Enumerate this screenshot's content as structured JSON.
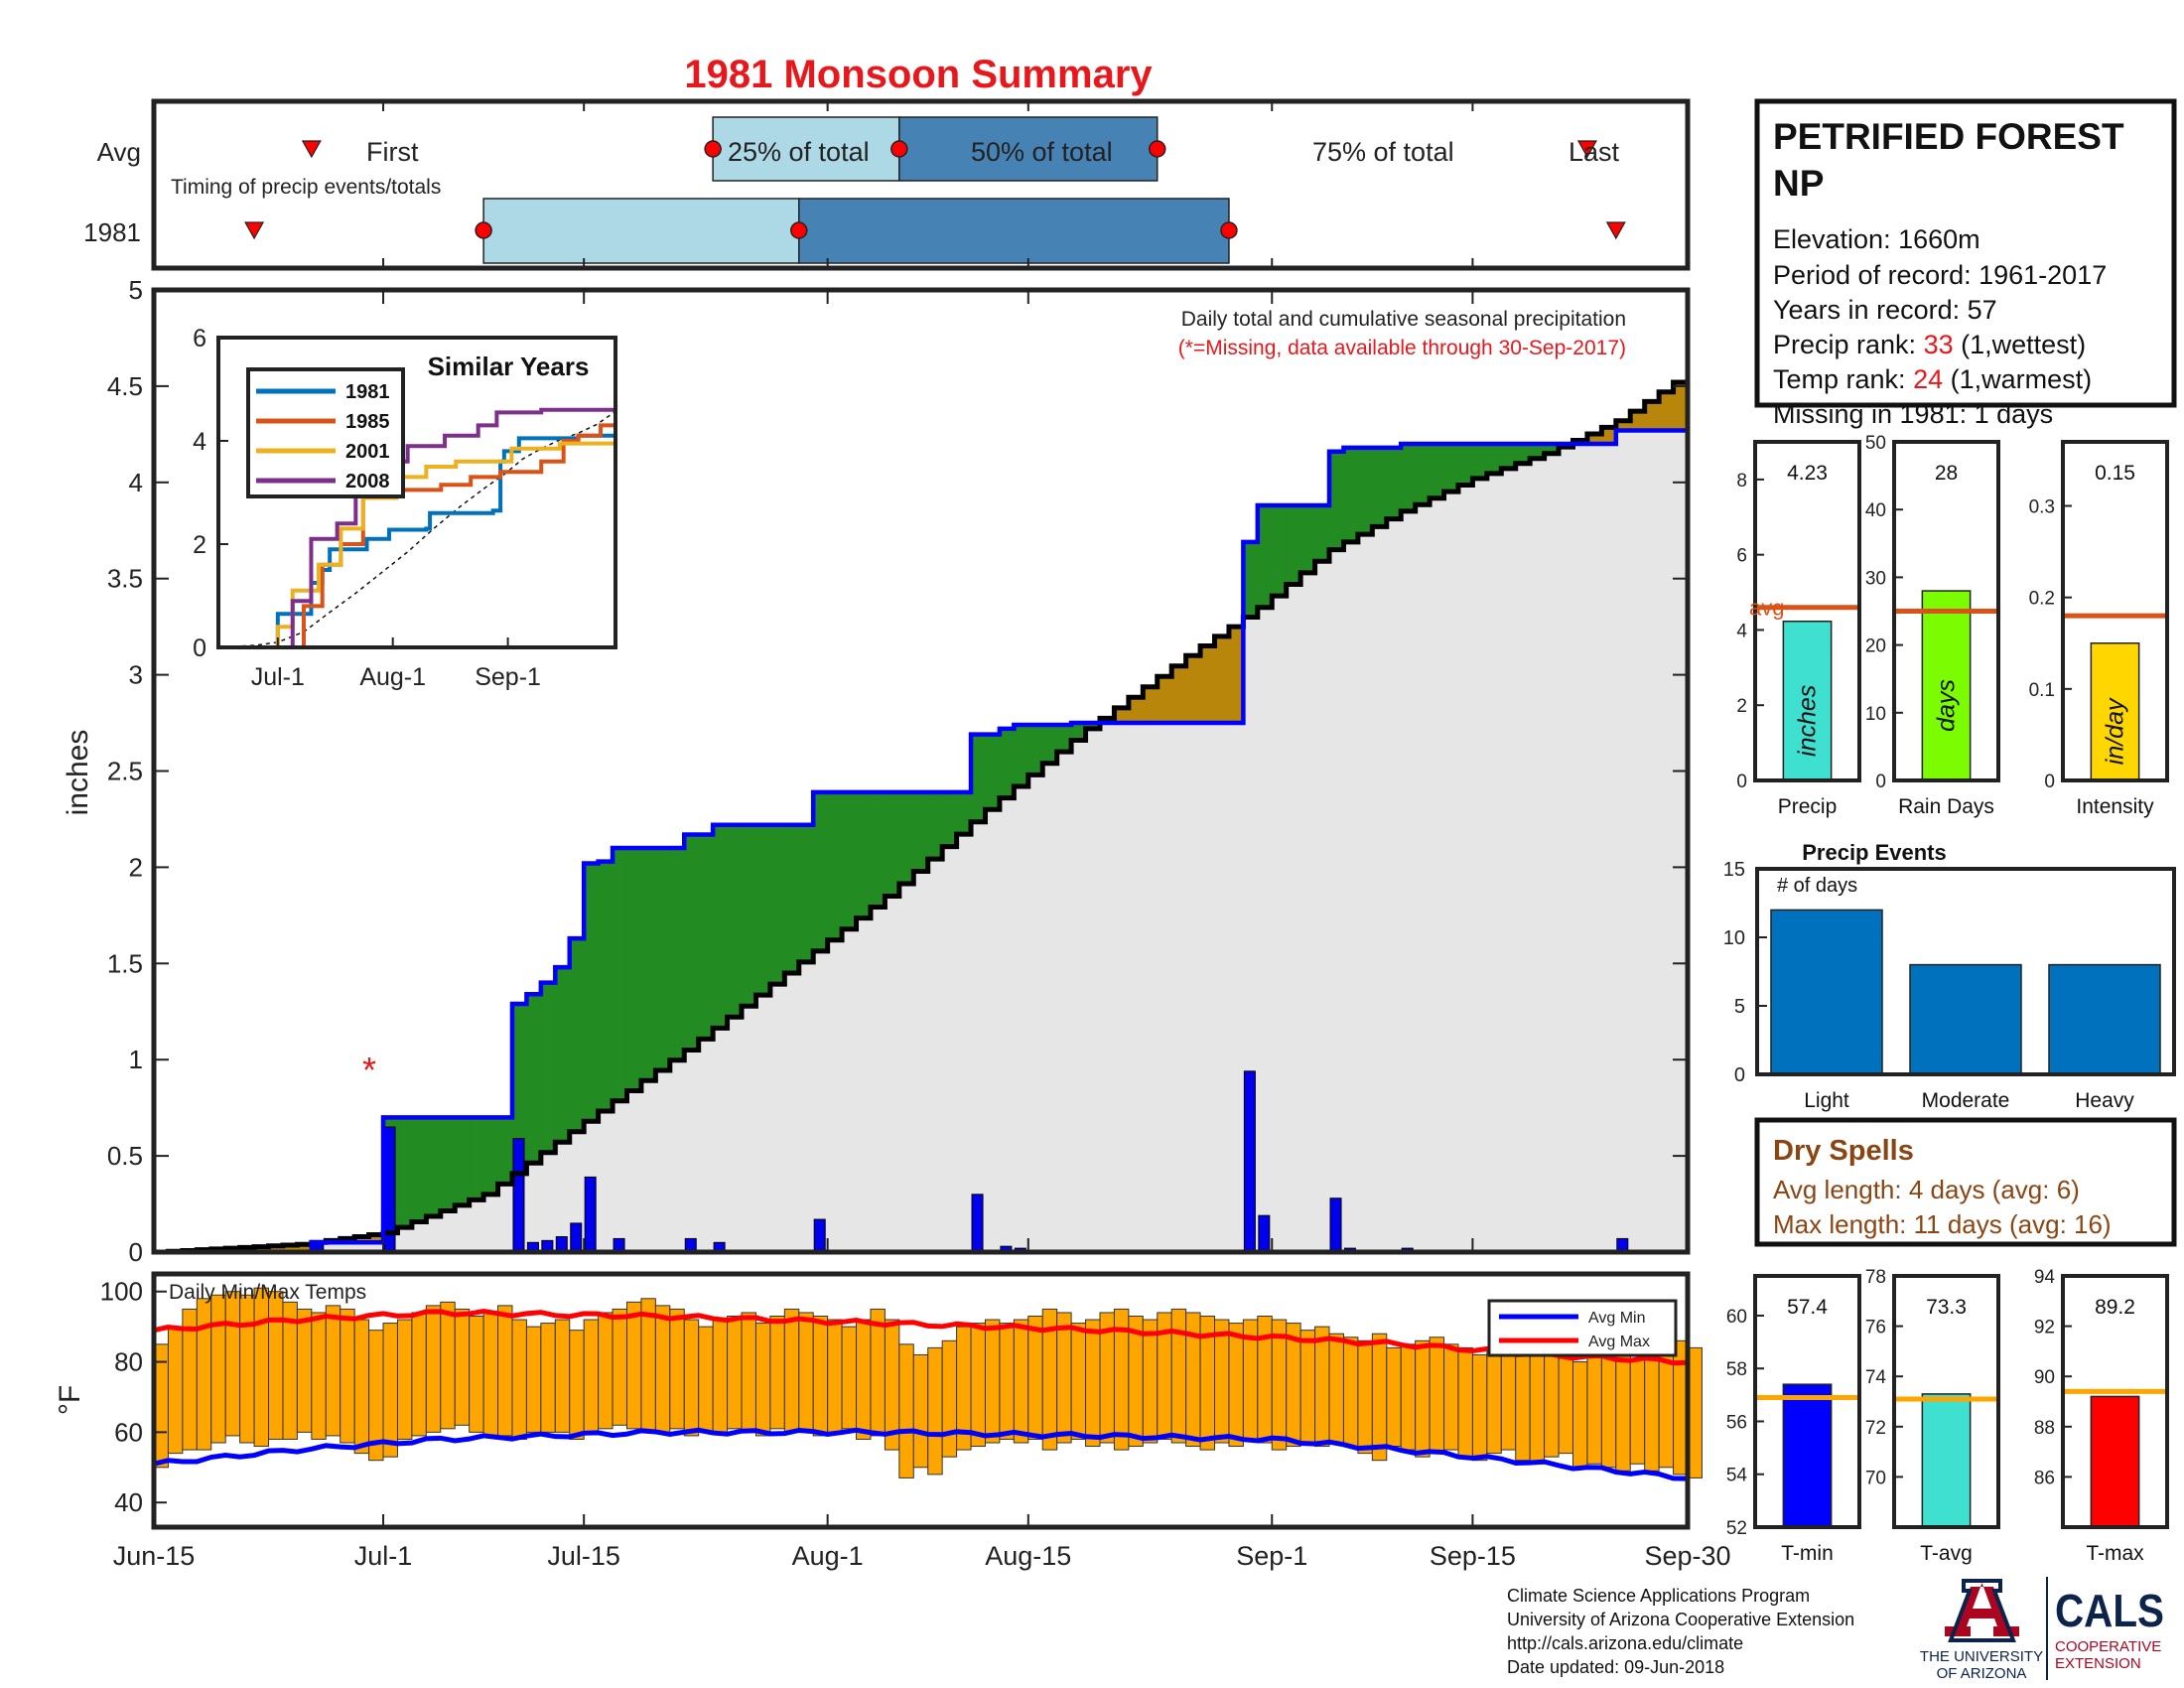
{
  "title": "1981 Monsoon Summary",
  "timing": {
    "rows": [
      "Avg",
      "1981"
    ],
    "note": "Timing of precip events/totals",
    "first_label": "First",
    "q25_label": "25% of total",
    "q50_label": "50% of total",
    "q75_label": "75% of total",
    "last_label": "Last",
    "avg": {
      "first": "2018-06-26",
      "q25": "2018-07-24",
      "q50": "2018-08-06",
      "q75": "2018-08-24",
      "last": "2018-09-23"
    },
    "y1981": {
      "first": "2018-06-22",
      "q25": "2018-07-08",
      "q50": "2018-07-30",
      "q75": "2018-08-29",
      "last": "2018-09-25"
    }
  },
  "station": {
    "name_line1": "PETRIFIED FOREST",
    "name_line2": "NP",
    "elevation": "Elevation: 1660m",
    "period": "Period of record: 1961-2017",
    "years": "Years in record: 57",
    "precip_rank_label": "Precip rank: ",
    "precip_rank_value": "33",
    "precip_rank_suffix": " (1,wettest)",
    "temp_rank_label": "Temp rank: ",
    "temp_rank_value": "24",
    "temp_rank_suffix": " (1,warmest)",
    "missing": "Missing in 1981: 1 days"
  },
  "colors": {
    "title": "#e8171b",
    "rank_value": "#e8171b",
    "missing_note": "#e8171b",
    "above_avg": "#228b22",
    "below_avg": "#b8860b",
    "season_fill": "#e6e6e6",
    "cumulative_avg_line": "#0000ff",
    "daily_bar": "#0000ee",
    "temp_bar": "#ffa500",
    "avg_min_line": "#0000ff",
    "avg_max_line": "#ff0000",
    "q_light": "#add8e6",
    "q_dark": "#4682b4",
    "marker_red": "#ff0000",
    "precip_bar": "#40e0d0",
    "raindays_bar": "#7cfc00",
    "intensity_bar": "#ffd700",
    "avg_line": "#d95319",
    "events_bar": "#0072bd",
    "dryspell_text": "#8b4513",
    "tmin_bar": "#0000ff",
    "tavg_bar": "#40e0d0",
    "tmax_bar": "#ff0000",
    "temp_avg_line": "#ffa500",
    "sim_1981": "#0072bd",
    "sim_1985": "#d95319",
    "sim_2001": "#edb120",
    "sim_2008": "#7e2f8e"
  },
  "chart_data": [
    {
      "type": "area",
      "name": "cumulative_precip",
      "annotation_line1": "Daily total and cumulative seasonal precipitation",
      "annotation_line2": "(*=Missing, data available through 30-Sep-2017)",
      "ylabel": "inches",
      "ylim": [
        0,
        5
      ],
      "yticks": [
        "0",
        "0.5",
        "1",
        "1.5",
        "2",
        "2.5",
        "3",
        "3.5",
        "4",
        "4.5",
        "5"
      ],
      "x_range": [
        "2018-06-15",
        "2018-09-30"
      ],
      "xtick_labels": [
        "Jun-15",
        "Jul-1",
        "Jul-15",
        "Aug-1",
        "Aug-15",
        "Sep-1",
        "Sep-15",
        "Sep-30"
      ],
      "xtick_dates": [
        "2018-06-15",
        "2018-07-01",
        "2018-07-15",
        "2018-08-01",
        "2018-08-15",
        "2018-09-01",
        "2018-09-15",
        "2018-09-30"
      ],
      "missing_marker": {
        "label": "*",
        "date": "2018-06-24",
        "value": 1.0
      },
      "avg_cumulative_knots": [
        [
          "2018-06-15",
          0
        ],
        [
          "2018-06-25",
          0.04
        ],
        [
          "2018-07-01",
          0.1
        ],
        [
          "2018-07-08",
          0.3
        ],
        [
          "2018-07-15",
          0.68
        ],
        [
          "2018-07-22",
          1.05
        ],
        [
          "2018-07-29",
          1.45
        ],
        [
          "2018-08-05",
          1.85
        ],
        [
          "2018-08-12",
          2.3
        ],
        [
          "2018-08-19",
          2.72
        ],
        [
          "2018-08-26",
          3.1
        ],
        [
          "2018-08-31",
          3.35
        ],
        [
          "2018-09-05",
          3.65
        ],
        [
          "2018-09-10",
          3.85
        ],
        [
          "2018-09-15",
          4.02
        ],
        [
          "2018-09-20",
          4.15
        ],
        [
          "2018-09-25",
          4.32
        ],
        [
          "2018-09-30",
          4.57
        ]
      ],
      "daily_1981": [
        [
          "2018-06-26",
          0.05
        ],
        [
          "2018-07-01",
          0.65
        ],
        [
          "2018-07-10",
          0.59
        ],
        [
          "2018-07-11",
          0.05
        ],
        [
          "2018-07-12",
          0.06
        ],
        [
          "2018-07-13",
          0.08
        ],
        [
          "2018-07-14",
          0.15
        ],
        [
          "2018-07-15",
          0.39
        ],
        [
          "2018-07-16",
          0.01
        ],
        [
          "2018-07-17",
          0.07
        ],
        [
          "2018-07-22",
          0.07
        ],
        [
          "2018-07-24",
          0.05
        ],
        [
          "2018-07-31",
          0.17
        ],
        [
          "2018-08-11",
          0.3
        ],
        [
          "2018-08-13",
          0.03
        ],
        [
          "2018-08-14",
          0.02
        ],
        [
          "2018-08-18",
          0.01
        ],
        [
          "2018-08-30",
          0.94
        ],
        [
          "2018-08-31",
          0.19
        ],
        [
          "2018-09-05",
          0.28
        ],
        [
          "2018-09-06",
          0.02
        ],
        [
          "2018-09-10",
          0.02
        ],
        [
          "2018-09-25",
          0.07
        ]
      ]
    },
    {
      "type": "line",
      "name": "similar_years",
      "title": "Similar Years",
      "ylim": [
        0,
        6
      ],
      "yticks": [
        "0",
        "2",
        "4",
        "6"
      ],
      "xtick_labels": [
        "Jul-1",
        "Aug-1",
        "Sep-1"
      ],
      "xtick_dates": [
        "2018-07-01",
        "2018-08-01",
        "2018-09-01"
      ],
      "x_range": [
        "2018-06-15",
        "2018-09-30"
      ],
      "series": [
        {
          "name": "1981",
          "color_key": "sim_1981",
          "points": [
            [
              "2018-06-15",
              0
            ],
            [
              "2018-06-30",
              0
            ],
            [
              "2018-07-01",
              0.65
            ],
            [
              "2018-07-09",
              0.65
            ],
            [
              "2018-07-10",
              1.25
            ],
            [
              "2018-07-13",
              1.5
            ],
            [
              "2018-07-15",
              1.9
            ],
            [
              "2018-07-25",
              2.1
            ],
            [
              "2018-07-31",
              2.28
            ],
            [
              "2018-08-10",
              2.3
            ],
            [
              "2018-08-11",
              2.6
            ],
            [
              "2018-08-28",
              2.65
            ],
            [
              "2018-08-30",
              3.6
            ],
            [
              "2018-08-31",
              3.8
            ],
            [
              "2018-09-04",
              4.05
            ],
            [
              "2018-09-20",
              4.1
            ],
            [
              "2018-09-30",
              4.22
            ]
          ]
        },
        {
          "name": "1985",
          "color_key": "sim_1985",
          "points": [
            [
              "2018-06-15",
              0
            ],
            [
              "2018-07-05",
              0
            ],
            [
              "2018-07-08",
              0.8
            ],
            [
              "2018-07-13",
              1.6
            ],
            [
              "2018-07-18",
              2.0
            ],
            [
              "2018-07-24",
              2.9
            ],
            [
              "2018-08-02",
              3.05
            ],
            [
              "2018-08-14",
              3.15
            ],
            [
              "2018-08-22",
              3.3
            ],
            [
              "2018-08-30",
              3.4
            ],
            [
              "2018-09-10",
              3.6
            ],
            [
              "2018-09-16",
              4.0
            ],
            [
              "2018-09-20",
              4.1
            ],
            [
              "2018-09-26",
              4.3
            ],
            [
              "2018-09-30",
              4.5
            ]
          ]
        },
        {
          "name": "2001",
          "color_key": "sim_2001",
          "points": [
            [
              "2018-06-15",
              0
            ],
            [
              "2018-06-28",
              0
            ],
            [
              "2018-07-01",
              0.4
            ],
            [
              "2018-07-05",
              1.1
            ],
            [
              "2018-07-12",
              1.6
            ],
            [
              "2018-07-18",
              2.3
            ],
            [
              "2018-07-24",
              2.9
            ],
            [
              "2018-08-02",
              3.3
            ],
            [
              "2018-08-10",
              3.5
            ],
            [
              "2018-08-18",
              3.6
            ],
            [
              "2018-09-02",
              3.85
            ],
            [
              "2018-09-15",
              3.95
            ],
            [
              "2018-09-30",
              4.02
            ]
          ]
        },
        {
          "name": "2008",
          "color_key": "sim_2008",
          "points": [
            [
              "2018-06-15",
              0
            ],
            [
              "2018-07-02",
              0
            ],
            [
              "2018-07-05",
              0.9
            ],
            [
              "2018-07-10",
              2.1
            ],
            [
              "2018-07-17",
              2.4
            ],
            [
              "2018-07-22",
              3.2
            ],
            [
              "2018-07-28",
              3.6
            ],
            [
              "2018-08-05",
              3.9
            ],
            [
              "2018-08-15",
              4.1
            ],
            [
              "2018-08-24",
              4.3
            ],
            [
              "2018-08-29",
              4.55
            ],
            [
              "2018-09-10",
              4.6
            ],
            [
              "2018-09-30",
              4.62
            ]
          ]
        }
      ]
    },
    {
      "type": "bar",
      "name": "daily_temps",
      "title": "Daily Min/Max Temps",
      "ylabel": "°F",
      "ylim": [
        33,
        105
      ],
      "yticks": [
        "40",
        "60",
        "80",
        "100"
      ],
      "legend": [
        "Avg Min",
        "Avg Max"
      ],
      "legend_position": "top-right",
      "avg_min_knots": [
        [
          "2018-06-15",
          51
        ],
        [
          "2018-06-25",
          55
        ],
        [
          "2018-07-05",
          58
        ],
        [
          "2018-07-20",
          60
        ],
        [
          "2018-08-05",
          60
        ],
        [
          "2018-08-20",
          59
        ],
        [
          "2018-09-01",
          58
        ],
        [
          "2018-09-10",
          55
        ],
        [
          "2018-09-20",
          51
        ],
        [
          "2018-09-30",
          47
        ]
      ],
      "avg_max_knots": [
        [
          "2018-06-15",
          89
        ],
        [
          "2018-06-25",
          92
        ],
        [
          "2018-07-05",
          94
        ],
        [
          "2018-07-20",
          93
        ],
        [
          "2018-08-05",
          91
        ],
        [
          "2018-08-20",
          89
        ],
        [
          "2018-09-01",
          87
        ],
        [
          "2018-09-10",
          85
        ],
        [
          "2018-09-20",
          82
        ],
        [
          "2018-09-30",
          80
        ]
      ],
      "tmin_1981": [
        50,
        54,
        55,
        55,
        57,
        59,
        57,
        56,
        58,
        58,
        60,
        58,
        59,
        57,
        54,
        52,
        53,
        58,
        59,
        60,
        61,
        62,
        60,
        59,
        59,
        58,
        60,
        60,
        60,
        58,
        60,
        61,
        62,
        61,
        60,
        60,
        61,
        59,
        60,
        60,
        61,
        60,
        59,
        61,
        60,
        60,
        59,
        60,
        61,
        58,
        59,
        55,
        47,
        50,
        48,
        53,
        55,
        56,
        57,
        58,
        57,
        58,
        55,
        57,
        58,
        56,
        57,
        55,
        56,
        57,
        58,
        57,
        56,
        55,
        57,
        56,
        58,
        57,
        55,
        56,
        57,
        56,
        57,
        56,
        54,
        52,
        56,
        55,
        53,
        54,
        55,
        53,
        52,
        54,
        55,
        52,
        51,
        53,
        54,
        50,
        51,
        50,
        49,
        51,
        49,
        50,
        48,
        47
      ],
      "tmax_1981": [
        85,
        90,
        95,
        98,
        99,
        100,
        99,
        101,
        100,
        97,
        95,
        94,
        96,
        95,
        92,
        89,
        91,
        92,
        94,
        96,
        97,
        95,
        93,
        94,
        96,
        92,
        90,
        91,
        92,
        89,
        92,
        94,
        95,
        97,
        98,
        96,
        95,
        92,
        90,
        92,
        93,
        94,
        91,
        93,
        95,
        94,
        93,
        92,
        90,
        92,
        95,
        92,
        85,
        82,
        84,
        86,
        90,
        91,
        92,
        91,
        92,
        93,
        95,
        94,
        91,
        92,
        94,
        95,
        93,
        92,
        94,
        95,
        94,
        93,
        92,
        91,
        92,
        93,
        92,
        91,
        89,
        90,
        88,
        87,
        86,
        88,
        84,
        85,
        86,
        87,
        85,
        84,
        82,
        83,
        84,
        85,
        83,
        82,
        81,
        80,
        82,
        84,
        83,
        81,
        82,
        85,
        86,
        84
      ]
    },
    {
      "type": "bar",
      "name": "seasonal_totals",
      "panels": [
        {
          "label": "Precip",
          "unit": "inches",
          "value": 4.23,
          "value_label": "4.23",
          "avg": 4.6,
          "avg_label": "avg",
          "ylim": [
            0,
            9
          ],
          "yticks": [
            "0",
            "2",
            "4",
            "6",
            "8"
          ],
          "color_key": "precip_bar"
        },
        {
          "label": "Rain Days",
          "unit": "days",
          "value": 28,
          "value_label": "28",
          "avg": 25,
          "ylim": [
            0,
            50
          ],
          "yticks": [
            "0",
            "10",
            "20",
            "30",
            "40",
            "50"
          ],
          "color_key": "raindays_bar"
        },
        {
          "label": "Intensity",
          "unit": "in/day",
          "value": 0.15,
          "value_label": "0.15",
          "avg": 0.18,
          "ylim": [
            0,
            0.37
          ],
          "yticks": [
            "0",
            "0.1",
            "0.2",
            "0.3"
          ],
          "color_key": "intensity_bar"
        }
      ]
    },
    {
      "type": "bar",
      "name": "precip_events",
      "title": "Precip Events",
      "ylabel_inside": "# of days",
      "categories": [
        "Light",
        "Moderate",
        "Heavy"
      ],
      "values": [
        12,
        8,
        8
      ],
      "ylim": [
        0,
        15
      ],
      "yticks": [
        "0",
        "5",
        "10",
        "15"
      ]
    },
    {
      "type": "bar",
      "name": "seasonal_temps",
      "panels": [
        {
          "label": "T-min",
          "value": 57.4,
          "value_label": "57.4",
          "avg": 56.9,
          "ylim": [
            52,
            61.5
          ],
          "yticks": [
            "52",
            "54",
            "56",
            "58",
            "60"
          ],
          "color_key": "tmin_bar"
        },
        {
          "label": "T-avg",
          "value": 73.3,
          "value_label": "73.3",
          "avg": 73.1,
          "ylim": [
            68,
            78
          ],
          "yticks": [
            "70",
            "72",
            "74",
            "76",
            "78"
          ],
          "color_key": "tavg_bar"
        },
        {
          "label": "T-max",
          "value": 89.2,
          "value_label": "89.2",
          "avg": 89.4,
          "ylim": [
            84,
            94
          ],
          "yticks": [
            "86",
            "88",
            "90",
            "92",
            "94"
          ],
          "color_key": "tmax_bar"
        }
      ]
    }
  ],
  "dry_spells": {
    "title": "Dry Spells",
    "avg_length": "Avg length: 4 days (avg: 6)",
    "max_length": "Max length: 11 days (avg: 16)"
  },
  "credits": {
    "line1": "Climate Science Applications Program",
    "line2": "University of Arizona Cooperative Extension",
    "line3": "http://cals.arizona.edu/climate",
    "line4": " Date updated: 09-Jun-2018"
  },
  "logos": {
    "ua_line1": "THE UNIVERSITY",
    "ua_line2": "OF ARIZONA",
    "cals": "CALS",
    "cals_line1": "COOPERATIVE",
    "cals_line2": "EXTENSION"
  }
}
